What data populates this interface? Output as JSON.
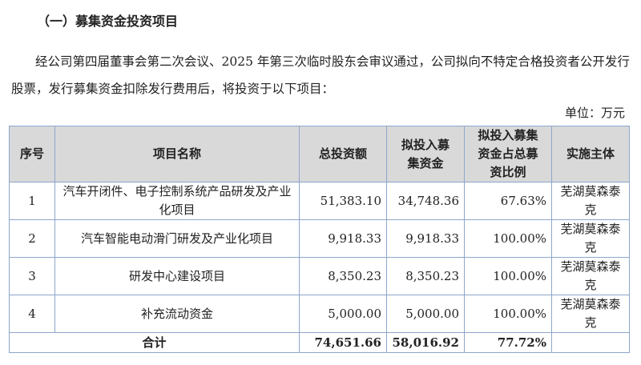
{
  "heading": "（一）募集资金投资项目",
  "paragraph": "经公司第四届董事会第二次会议、2025 年第三次临时股东会审议通过，公司拟向不特定合格投资者公开发行股票，发行募集资金扣除发行费用后，将投资于以下项目：",
  "unit": "单位：万元",
  "table": {
    "headers": [
      "序号",
      "项目名称",
      "总投资额",
      "拟投入募集资金",
      "拟投入募集资金占总募资比例",
      "实施主体"
    ],
    "rows": [
      {
        "no": "1",
        "name": "汽车开闭件、电子控制系统产品研发及产业化项目",
        "total": "51,383.10",
        "raised": "34,748.36",
        "ratio": "67.63%",
        "entity": "芜湖莫森泰克"
      },
      {
        "no": "2",
        "name": "汽车智能电动滑门研发及产业化项目",
        "total": "9,918.33",
        "raised": "9,918.33",
        "ratio": "100.00%",
        "entity": "芜湖莫森泰克"
      },
      {
        "no": "3",
        "name": "研发中心建设项目",
        "total": "8,350.23",
        "raised": "8,350.23",
        "ratio": "100.00%",
        "entity": "芜湖莫森泰克"
      },
      {
        "no": "4",
        "name": "补充流动资金",
        "total": "5,000.00",
        "raised": "5,000.00",
        "ratio": "100.00%",
        "entity": "芜湖莫森泰克"
      }
    ],
    "total": {
      "label": "合计",
      "total": "74,651.66",
      "raised": "58,016.92",
      "ratio": "77.72%"
    }
  }
}
